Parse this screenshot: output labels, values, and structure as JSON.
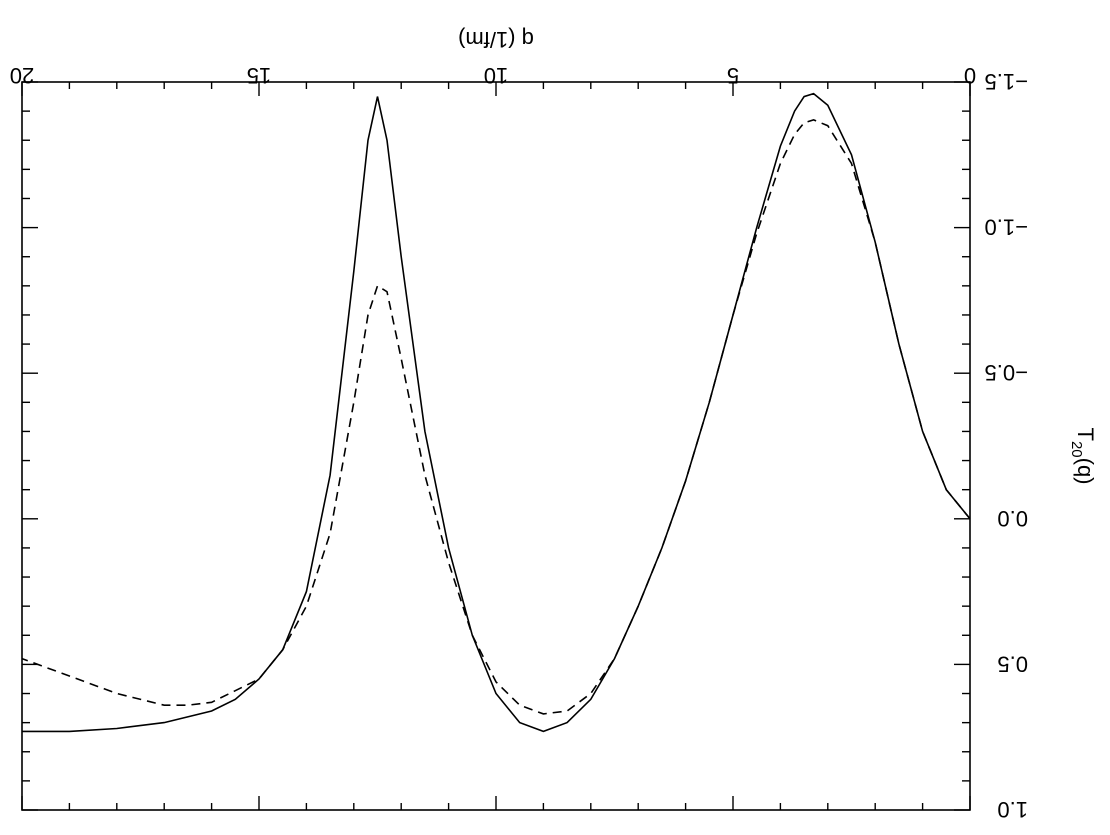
{
  "chart_data": {
    "type": "line",
    "orientation": "rotated-180",
    "title": "",
    "xlabel": "q (1/fm)",
    "ylabel": "T20(q)",
    "ylabel_main": "T",
    "ylabel_sub": "20",
    "ylabel_tail": "(q)",
    "xlim": [
      0,
      20
    ],
    "ylim": [
      -1.5,
      1.0
    ],
    "x_ticks": [
      0,
      5,
      10,
      15,
      20
    ],
    "x_tick_labels": [
      "0",
      "5",
      "10",
      "15",
      "20"
    ],
    "y_ticks": [
      -1.5,
      -1.0,
      -0.5,
      0.0,
      0.5,
      1.0
    ],
    "y_tick_labels": [
      "−1.5",
      "−1.0",
      "−0.5",
      "0.0",
      "0.5",
      "1.0"
    ],
    "grid": false,
    "series": [
      {
        "style": "solid",
        "x": [
          0.0,
          0.5,
          1.0,
          1.5,
          2.0,
          2.5,
          3.0,
          3.3,
          3.5,
          3.7,
          4.0,
          4.5,
          5.0,
          5.5,
          6.0,
          6.5,
          7.0,
          7.5,
          8.0,
          8.5,
          9.0,
          9.5,
          10.0,
          10.5,
          11.0,
          11.5,
          12.0,
          12.3,
          12.5,
          12.7,
          13.0,
          13.5,
          14.0,
          14.5,
          15.0,
          15.5,
          16.0,
          17.0,
          18.0,
          19.0,
          20.0
        ],
        "y": [
          0.0,
          -0.1,
          -0.3,
          -0.6,
          -0.95,
          -1.25,
          -1.42,
          -1.46,
          -1.45,
          -1.4,
          -1.28,
          -1.0,
          -0.7,
          -0.4,
          -0.13,
          0.1,
          0.3,
          0.48,
          0.62,
          0.7,
          0.73,
          0.7,
          0.6,
          0.4,
          0.1,
          -0.3,
          -0.9,
          -1.3,
          -1.45,
          -1.3,
          -0.85,
          -0.15,
          0.25,
          0.45,
          0.55,
          0.62,
          0.66,
          0.7,
          0.72,
          0.73,
          0.73
        ]
      },
      {
        "style": "dashed",
        "x": [
          0.0,
          0.5,
          1.0,
          1.5,
          2.0,
          2.5,
          3.0,
          3.3,
          3.5,
          3.7,
          4.0,
          4.5,
          5.0,
          5.5,
          6.0,
          6.5,
          7.0,
          7.5,
          8.0,
          8.5,
          9.0,
          9.5,
          10.0,
          10.5,
          11.0,
          11.5,
          12.0,
          12.3,
          12.5,
          12.7,
          13.0,
          13.5,
          14.0,
          14.5,
          15.0,
          16.0,
          16.5,
          17.0,
          18.0,
          19.0,
          20.0
        ],
        "y": [
          0.0,
          -0.1,
          -0.3,
          -0.6,
          -0.95,
          -1.22,
          -1.35,
          -1.37,
          -1.36,
          -1.32,
          -1.22,
          -0.98,
          -0.7,
          -0.4,
          -0.13,
          0.1,
          0.3,
          0.48,
          0.6,
          0.66,
          0.67,
          0.64,
          0.56,
          0.4,
          0.15,
          -0.15,
          -0.55,
          -0.78,
          -0.8,
          -0.7,
          -0.4,
          0.05,
          0.3,
          0.45,
          0.55,
          0.63,
          0.64,
          0.64,
          0.6,
          0.54,
          0.48
        ]
      }
    ]
  }
}
